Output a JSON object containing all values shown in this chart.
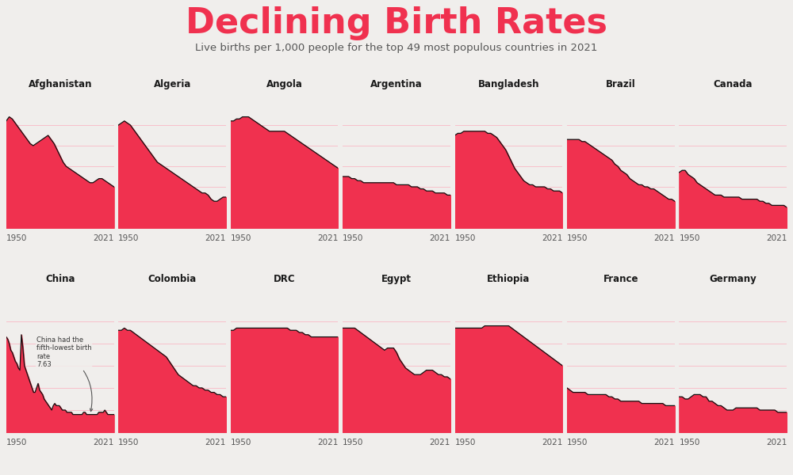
{
  "title": "Declining Birth Rates",
  "subtitle": "Live births per 1,000 people for the top 49 most populous countries in 2021",
  "background_color": "#f0eeec",
  "fill_color": "#f0314f",
  "line_color": "#111111",
  "title_color": "#f0314f",
  "subtitle_color": "#555555",
  "grid_color": "#f8c0ca",
  "axis_label_color": "#555555",
  "row1_countries": [
    "Afghanistan",
    "Algeria",
    "Angola",
    "Argentina",
    "Bangladesh",
    "Brazil",
    "Canada"
  ],
  "row2_countries": [
    "China",
    "Colombia",
    "DRC",
    "Egypt",
    "Ethiopia",
    "France",
    "Germany"
  ],
  "country_data": {
    "Afghanistan": [
      52,
      54,
      53,
      51,
      49,
      47,
      45,
      43,
      41,
      40,
      41,
      42,
      43,
      44,
      45,
      43,
      41,
      38,
      35,
      32,
      30,
      29,
      28,
      27,
      26,
      25,
      24,
      23,
      22,
      22,
      23,
      24,
      24,
      23,
      22,
      21,
      20
    ],
    "Algeria": [
      50,
      51,
      52,
      51,
      50,
      48,
      46,
      44,
      42,
      40,
      38,
      36,
      34,
      32,
      31,
      30,
      29,
      28,
      27,
      26,
      25,
      24,
      23,
      22,
      21,
      20,
      19,
      18,
      17,
      17,
      16,
      14,
      13,
      13,
      14,
      15,
      15
    ],
    "Angola": [
      52,
      52,
      53,
      53,
      54,
      54,
      54,
      53,
      52,
      51,
      50,
      49,
      48,
      47,
      47,
      47,
      47,
      47,
      47,
      46,
      45,
      44,
      43,
      42,
      41,
      40,
      39,
      38,
      37,
      36,
      35,
      34,
      33,
      32,
      31,
      30,
      29
    ],
    "Argentina": [
      25,
      25,
      25,
      24,
      24,
      23,
      23,
      22,
      22,
      22,
      22,
      22,
      22,
      22,
      22,
      22,
      22,
      22,
      21,
      21,
      21,
      21,
      21,
      20,
      20,
      20,
      19,
      19,
      18,
      18,
      18,
      17,
      17,
      17,
      17,
      16,
      16
    ],
    "Bangladesh": [
      45,
      46,
      46,
      47,
      47,
      47,
      47,
      47,
      47,
      47,
      47,
      46,
      46,
      45,
      44,
      42,
      40,
      38,
      35,
      32,
      29,
      27,
      25,
      23,
      22,
      21,
      21,
      20,
      20,
      20,
      20,
      19,
      19,
      18,
      18,
      18,
      17
    ],
    "Brazil": [
      43,
      43,
      43,
      43,
      43,
      42,
      42,
      41,
      40,
      39,
      38,
      37,
      36,
      35,
      34,
      33,
      31,
      30,
      28,
      27,
      26,
      24,
      23,
      22,
      21,
      21,
      20,
      20,
      19,
      19,
      18,
      17,
      16,
      15,
      14,
      14,
      13
    ],
    "Canada": [
      27,
      28,
      28,
      26,
      25,
      24,
      22,
      21,
      20,
      19,
      18,
      17,
      16,
      16,
      16,
      15,
      15,
      15,
      15,
      15,
      15,
      14,
      14,
      14,
      14,
      14,
      14,
      13,
      13,
      12,
      12,
      11,
      11,
      11,
      11,
      11,
      10
    ],
    "China": [
      43,
      42,
      40,
      37,
      36,
      34,
      32,
      31,
      29,
      28,
      44,
      38,
      30,
      28,
      26,
      24,
      22,
      20,
      18,
      18,
      20,
      22,
      19,
      18,
      17,
      15,
      14,
      13,
      12,
      11,
      10,
      12,
      13,
      12,
      12,
      12,
      11,
      10,
      10,
      10,
      9,
      9,
      9,
      9,
      8,
      8,
      8,
      8,
      8,
      8,
      8,
      9,
      9,
      8,
      8,
      8,
      8,
      8,
      8,
      8,
      8,
      9,
      9,
      9,
      9,
      10,
      9,
      8,
      8,
      8,
      8,
      8
    ],
    "Colombia": [
      46,
      46,
      47,
      46,
      46,
      45,
      44,
      43,
      42,
      41,
      40,
      39,
      38,
      37,
      36,
      35,
      34,
      32,
      30,
      28,
      26,
      25,
      24,
      23,
      22,
      21,
      21,
      20,
      20,
      19,
      19,
      18,
      18,
      17,
      17,
      16,
      16
    ],
    "DRC": [
      46,
      46,
      47,
      47,
      47,
      47,
      47,
      47,
      47,
      47,
      47,
      47,
      47,
      47,
      47,
      47,
      47,
      47,
      47,
      47,
      46,
      46,
      46,
      45,
      45,
      44,
      44,
      43,
      43,
      43,
      43,
      43,
      43,
      43,
      43,
      43,
      43
    ],
    "Egypt": [
      47,
      47,
      47,
      47,
      47,
      46,
      45,
      44,
      43,
      42,
      41,
      40,
      39,
      38,
      37,
      38,
      38,
      38,
      36,
      33,
      31,
      29,
      28,
      27,
      26,
      26,
      26,
      27,
      28,
      28,
      28,
      27,
      26,
      26,
      25,
      25,
      24
    ],
    "Ethiopia": [
      47,
      47,
      47,
      47,
      47,
      47,
      47,
      47,
      47,
      47,
      48,
      48,
      48,
      48,
      48,
      48,
      48,
      48,
      48,
      47,
      46,
      45,
      44,
      43,
      42,
      41,
      40,
      39,
      38,
      37,
      36,
      35,
      34,
      33,
      32,
      31,
      30
    ],
    "France": [
      20,
      19,
      18,
      18,
      18,
      18,
      18,
      17,
      17,
      17,
      17,
      17,
      17,
      17,
      16,
      16,
      15,
      15,
      14,
      14,
      14,
      14,
      14,
      14,
      14,
      13,
      13,
      13,
      13,
      13,
      13,
      13,
      13,
      12,
      12,
      12,
      12
    ],
    "Germany": [
      16,
      16,
      15,
      15,
      16,
      17,
      17,
      17,
      16,
      16,
      14,
      14,
      13,
      12,
      12,
      11,
      10,
      10,
      10,
      11,
      11,
      11,
      11,
      11,
      11,
      11,
      11,
      10,
      10,
      10,
      10,
      10,
      10,
      9,
      9,
      9,
      9
    ]
  }
}
